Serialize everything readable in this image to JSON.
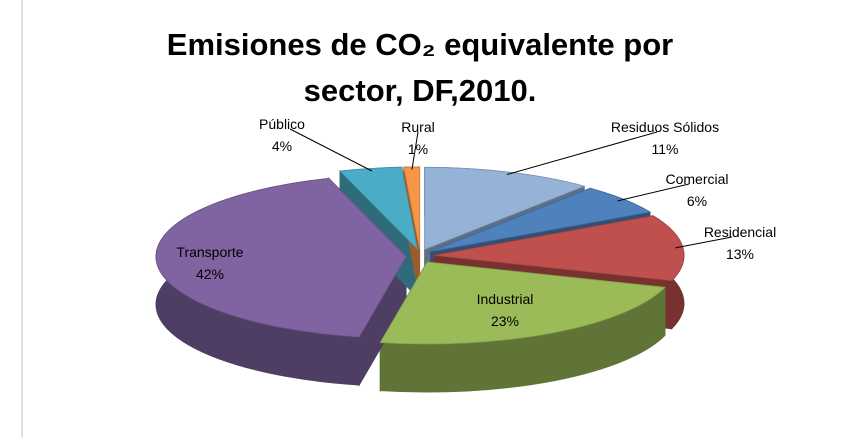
{
  "chart_data": {
    "type": "pie3d",
    "title": "Emisiones de CO₂ equivalente por sector, DF,2010.",
    "categories": [
      "Residuos Sólidos",
      "Comercial",
      "Residencial",
      "Industrial",
      "Transporte",
      "Público",
      "Rural"
    ],
    "values": [
      11,
      6,
      13,
      23,
      42,
      4,
      1
    ],
    "value_labels": [
      "11%",
      "6%",
      "13%",
      "23%",
      "42%",
      "4%",
      "1%"
    ],
    "colors": [
      "#95b3d7",
      "#4f81bd",
      "#c0504d",
      "#9bbb59",
      "#8064a2",
      "#4bacc6",
      "#f79646"
    ]
  }
}
